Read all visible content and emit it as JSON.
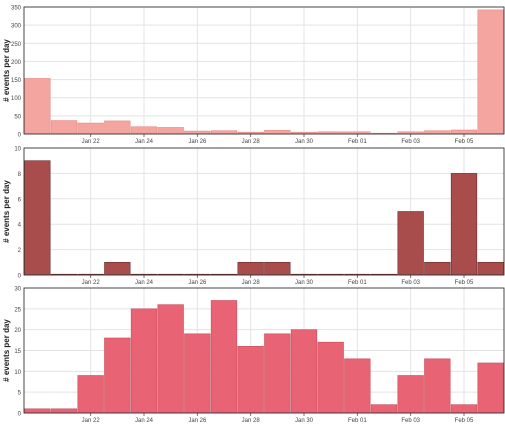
{
  "chart_data": [
    {
      "type": "bar",
      "ylabel": "# events per day",
      "ylim": [
        0,
        350
      ],
      "yticks": [
        0,
        50,
        100,
        150,
        200,
        250,
        300,
        350
      ],
      "grid": true,
      "x_tick_labels": [
        "Jan 22",
        "Jan 24",
        "Jan 26",
        "Jan 28",
        "Jan 30",
        "Feb 01",
        "Feb 03",
        "Feb 05"
      ],
      "categories": [
        "Jan 20",
        "Jan 21",
        "Jan 22",
        "Jan 23",
        "Jan 24",
        "Jan 25",
        "Jan 26",
        "Jan 27",
        "Jan 28",
        "Jan 29",
        "Jan 30",
        "Jan 31",
        "Feb 01",
        "Feb 02",
        "Feb 03",
        "Feb 04",
        "Feb 05",
        "Feb 06"
      ],
      "values": [
        153,
        37,
        30,
        36,
        20,
        18,
        8,
        9,
        5,
        10,
        5,
        6,
        6,
        2,
        6,
        9,
        11,
        342
      ],
      "color": "#f4a5a0",
      "stroke": "#e8867f"
    },
    {
      "type": "bar",
      "ylabel": "# events per day",
      "ylim": [
        0,
        10
      ],
      "yticks": [
        0,
        2,
        4,
        6,
        8,
        10
      ],
      "grid": true,
      "x_tick_labels": [
        "Jan 22",
        "Jan 24",
        "Jan 26",
        "Jan 28",
        "Jan 30",
        "Feb 01",
        "Feb 03",
        "Feb 05"
      ],
      "categories": [
        "Jan 20",
        "Jan 21",
        "Jan 22",
        "Jan 23",
        "Jan 24",
        "Jan 25",
        "Jan 26",
        "Jan 27",
        "Jan 28",
        "Jan 29",
        "Jan 30",
        "Jan 31",
        "Feb 01",
        "Feb 02",
        "Feb 03",
        "Feb 04",
        "Feb 05",
        "Feb 06"
      ],
      "values": [
        9,
        0,
        0,
        1,
        0,
        0,
        0,
        0,
        1,
        1,
        0,
        0,
        0,
        0,
        5,
        1,
        8,
        1
      ],
      "color": "#a84c4c",
      "stroke": "#6e2b2b"
    },
    {
      "type": "bar",
      "ylabel": "# events per day",
      "ylim": [
        0,
        30
      ],
      "yticks": [
        0,
        5,
        10,
        15,
        20,
        25,
        30
      ],
      "grid": true,
      "x_tick_labels": [
        "Jan 22",
        "Jan 24",
        "Jan 26",
        "Jan 28",
        "Jan 30",
        "Feb 01",
        "Feb 03",
        "Feb 05"
      ],
      "categories": [
        "Jan 20",
        "Jan 21",
        "Jan 22",
        "Jan 23",
        "Jan 24",
        "Jan 25",
        "Jan 26",
        "Jan 27",
        "Jan 28",
        "Jan 29",
        "Jan 30",
        "Jan 31",
        "Feb 01",
        "Feb 02",
        "Feb 03",
        "Feb 04",
        "Feb 05",
        "Feb 06"
      ],
      "values": [
        1,
        1,
        9,
        18,
        25,
        26,
        19,
        27,
        16,
        19,
        20,
        17,
        13,
        2,
        9,
        13,
        2,
        12
      ],
      "color": "#e86474",
      "stroke": "#c94a5b"
    }
  ]
}
